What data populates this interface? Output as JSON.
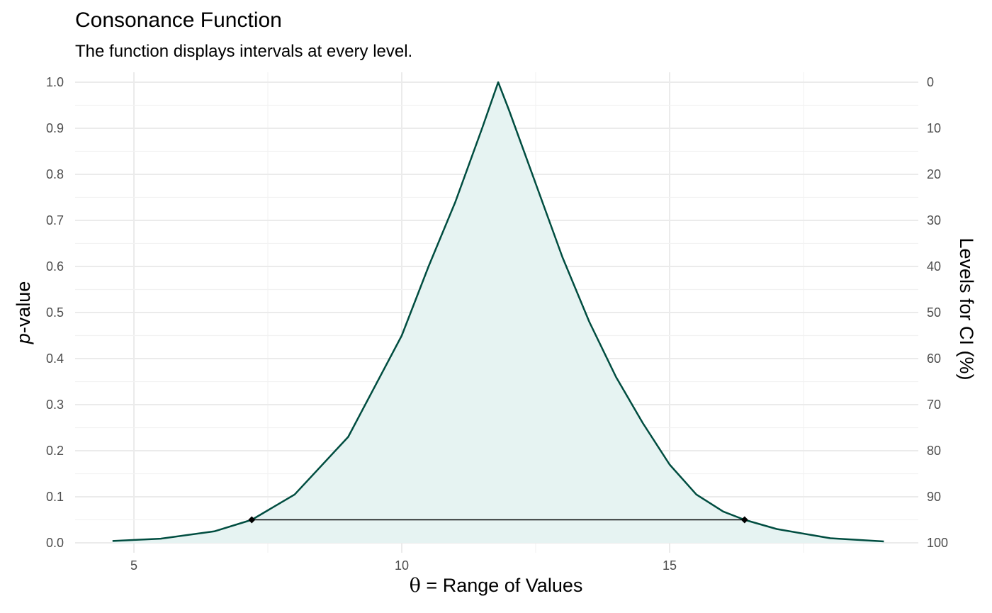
{
  "chart_data": {
    "type": "area",
    "title": "Consonance Function",
    "subtitle": "The function displays intervals at every level.",
    "xlabel": "Range of Values",
    "xlabel_symbol": "θ",
    "xlabel_eq": "=",
    "ylabel_p": "p",
    "ylabel_rest": "-value",
    "ylabel_right": "Levels for CI (%)",
    "xlim": [
      4.1,
      19.2
    ],
    "ylim": [
      0,
      1
    ],
    "x_ticks": [
      5,
      10,
      15
    ],
    "x_tick_labels": [
      "5",
      "10",
      "15"
    ],
    "y_ticks": [
      0,
      0.1,
      0.2,
      0.3,
      0.4,
      0.5,
      0.6,
      0.7,
      0.8,
      0.9,
      1.0
    ],
    "y_tick_labels": [
      "0.0",
      "0.1",
      "0.2",
      "0.3",
      "0.4",
      "0.5",
      "0.6",
      "0.7",
      "0.8",
      "0.9",
      "1.0"
    ],
    "y2_tick_labels": [
      "100",
      "90",
      "80",
      "70",
      "60",
      "50",
      "40",
      "30",
      "20",
      "10",
      "0"
    ],
    "grid": true,
    "series": [
      {
        "x": [
          4.6,
          5.5,
          6.5,
          7.2,
          8.0,
          9.0,
          10.0,
          10.5,
          11.0,
          11.5,
          11.8,
          12.0,
          12.5,
          13.0,
          13.5,
          14.0,
          14.5,
          15.0,
          15.5,
          16.0,
          16.4,
          17.0,
          18.0,
          19.0
        ],
        "y": [
          0.004,
          0.009,
          0.025,
          0.05,
          0.105,
          0.23,
          0.45,
          0.6,
          0.74,
          0.9,
          1.0,
          0.94,
          0.78,
          0.62,
          0.48,
          0.36,
          0.26,
          0.17,
          0.105,
          0.068,
          0.05,
          0.03,
          0.01,
          0.003
        ],
        "color": "#004d40",
        "fill": "#e6f3f2"
      }
    ],
    "interval": {
      "x_low": 7.2,
      "x_high": 16.4,
      "p": 0.05,
      "color": "#000000"
    }
  }
}
